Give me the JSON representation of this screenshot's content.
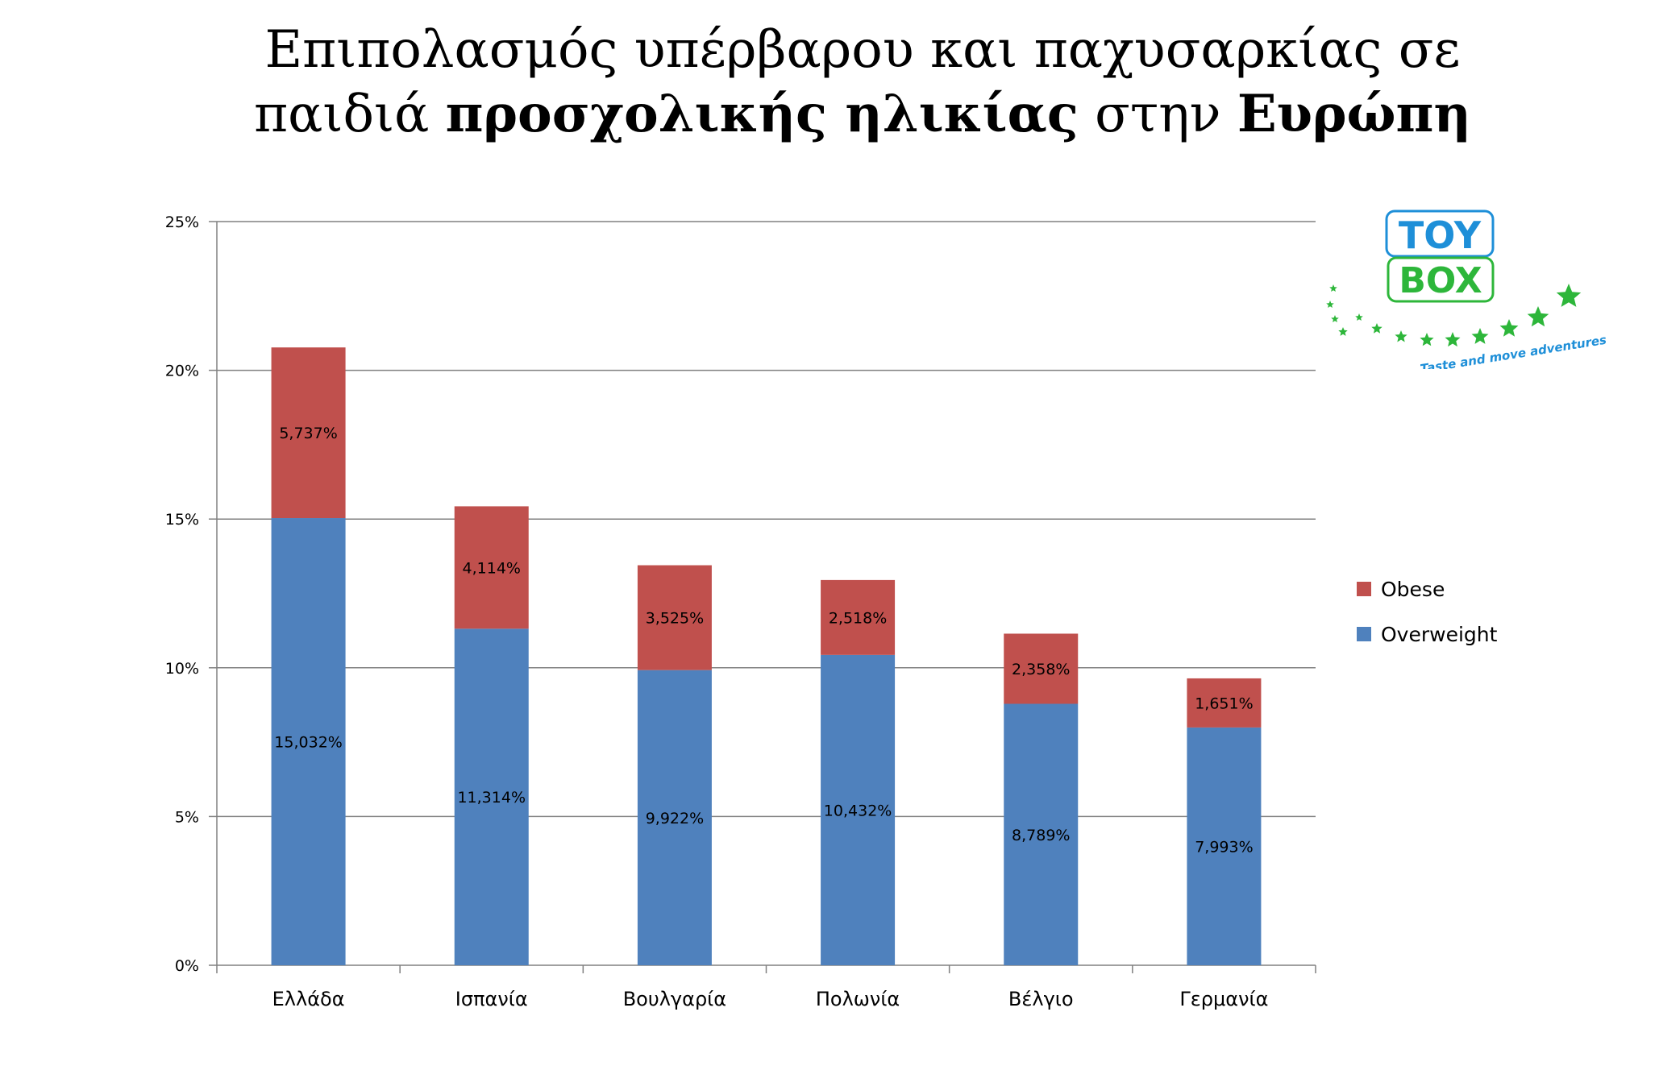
{
  "title": {
    "line1": "Επιπολασμός υπέρβαρου και παχυσαρκίας σε",
    "line2_part1": "παιδιά ",
    "line2_bold1": "προσχολικής ηλικίας",
    "line2_part2": " στην ",
    "line2_bold2": "Ευρώπη"
  },
  "logo": {
    "word1": "TOY",
    "word2": "BOX",
    "tagline": "Taste and move adventures"
  },
  "colors": {
    "overweight": "#4F81BD",
    "obese": "#C0504D",
    "grid": "#808080",
    "logo_blue": "#1e8fd8",
    "logo_green": "#2db63a"
  },
  "chart_data": {
    "type": "bar",
    "stacked": true,
    "categories": [
      "Ελλάδα",
      "Ισπανία",
      "Βουλγαρία",
      "Πολωνία",
      "Βέλγιο",
      "Γερμανία"
    ],
    "series": [
      {
        "name": "Overweight",
        "values": [
          15.032,
          11.314,
          9.922,
          10.432,
          8.789,
          7.993
        ],
        "labels": [
          "15,032%",
          "11,314%",
          "9,922%",
          "10,432%",
          "8,789%",
          "7,993%"
        ]
      },
      {
        "name": "Obese",
        "values": [
          5.737,
          4.114,
          3.525,
          2.518,
          2.358,
          1.651
        ],
        "labels": [
          "5,737%",
          "4,114%",
          "3,525%",
          "2,518%",
          "2,358%",
          "1,651%"
        ]
      }
    ],
    "ylim": [
      0,
      25
    ],
    "yticks": [
      0,
      5,
      10,
      15,
      20,
      25
    ],
    "ytick_labels": [
      "0%",
      "5%",
      "10%",
      "15%",
      "20%",
      "25%"
    ],
    "legend_order": [
      "Obese",
      "Overweight"
    ],
    "legend_position": "right",
    "grid": true
  }
}
